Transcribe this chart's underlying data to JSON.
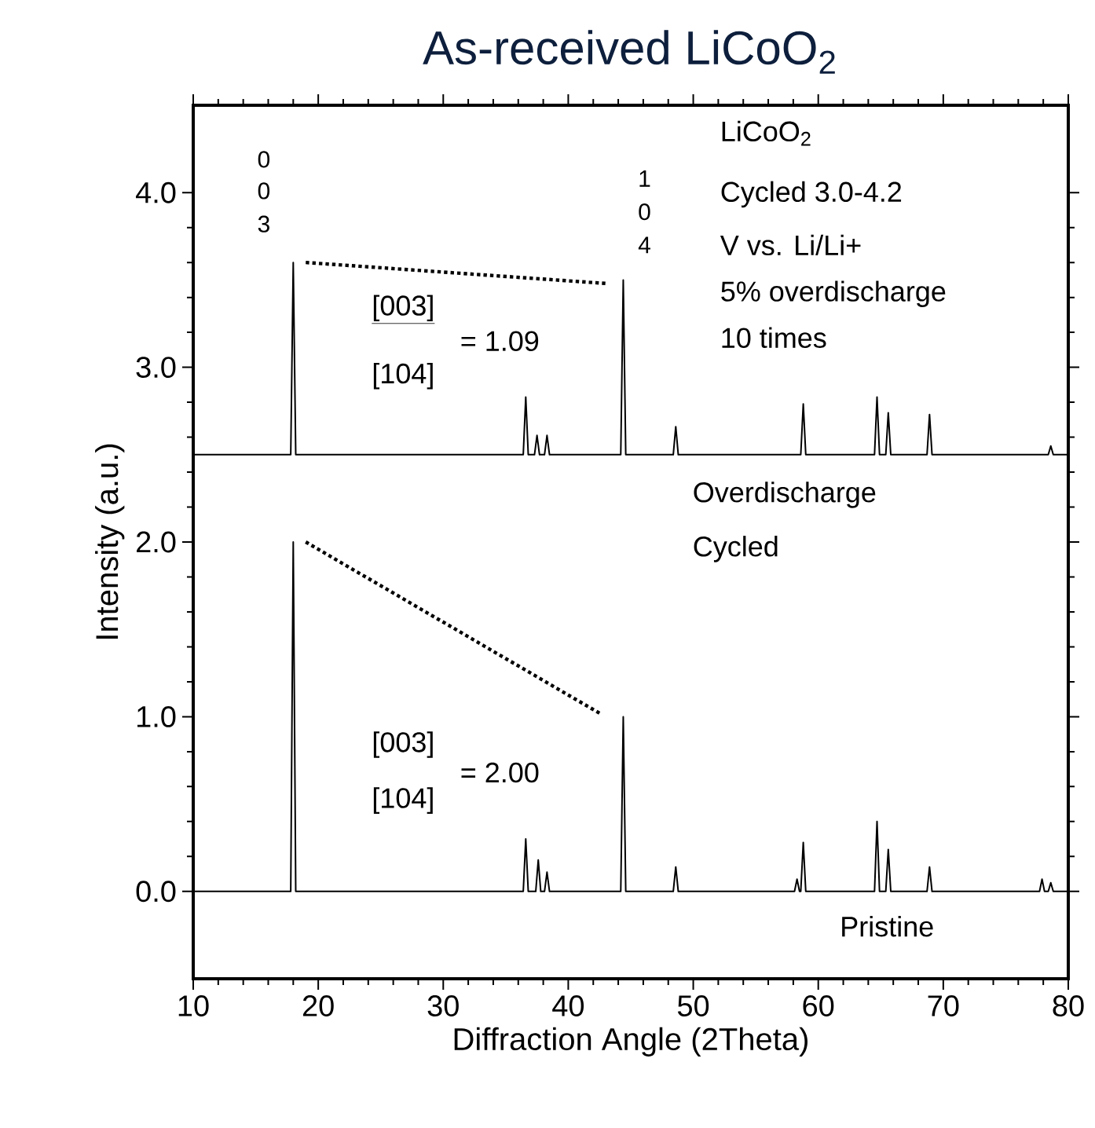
{
  "chart_data": {
    "type": "line",
    "title": "As-received LiCoO$_{2}$",
    "xlabel": "Diffraction Angle (2Theta)",
    "ylabel": "Intensity (a.u.)",
    "xlim": [
      10,
      80
    ],
    "ylim": [
      -0.5,
      4.5
    ],
    "xticks": [
      10,
      20,
      30,
      40,
      50,
      60,
      70,
      80
    ],
    "yticks": [
      {
        "value": 0,
        "label": "0.0"
      },
      {
        "value": 1,
        "label": "1.0"
      },
      {
        "value": 2,
        "label": "2.0"
      },
      {
        "value": 3,
        "label": "3.0"
      },
      {
        "value": 4,
        "label": "4.0"
      }
    ],
    "marker": "none",
    "series": [
      {
        "color": "#000000",
        "line_style": "solid",
        "x": [
          10,
          17.8,
          18.0,
          18.2,
          36.4,
          36.6,
          36.8,
          37.4,
          37.6,
          37.8,
          38.1,
          38.3,
          38.5,
          44.2,
          44.4,
          44.6,
          48.4,
          48.6,
          48.8,
          58.1,
          58.3,
          58.5,
          58.6,
          58.8,
          59.0,
          64.5,
          64.7,
          64.9,
          65.4,
          65.6,
          65.8,
          68.7,
          68.9,
          69.1,
          77.7,
          77.9,
          78.1,
          78.4,
          78.6,
          78.8,
          80
        ],
        "values": [
          0,
          0,
          2.0,
          0,
          0,
          0.3,
          0,
          0,
          0.18,
          0,
          0,
          0.11,
          0,
          0,
          1.0,
          0,
          0,
          0.14,
          0,
          0,
          0.07,
          0,
          0,
          0.28,
          0,
          0,
          0.4,
          0,
          0,
          0.24,
          0,
          0,
          0.14,
          0,
          0,
          0.07,
          0,
          0,
          0.05,
          0,
          0
        ]
      },
      {
        "color": "#000000",
        "line_style": "solid",
        "x": [
          10,
          17.8,
          18.0,
          18.2,
          36.4,
          36.6,
          36.8,
          37.3,
          37.5,
          37.7,
          38.1,
          38.3,
          38.5,
          44.2,
          44.4,
          44.6,
          48.4,
          48.6,
          48.8,
          58.6,
          58.8,
          59.0,
          64.5,
          64.7,
          64.9,
          65.4,
          65.6,
          65.8,
          68.7,
          68.9,
          69.1,
          78.4,
          78.6,
          78.8,
          80
        ],
        "values": [
          2.5,
          2.5,
          3.6,
          2.5,
          2.5,
          2.83,
          2.5,
          2.5,
          2.61,
          2.5,
          2.5,
          2.61,
          2.5,
          2.5,
          3.5,
          2.5,
          2.5,
          2.66,
          2.5,
          2.5,
          2.79,
          2.5,
          2.5,
          2.83,
          2.5,
          2.5,
          2.74,
          2.5,
          2.5,
          2.73,
          2.5,
          2.5,
          2.55,
          2.5,
          2.5
        ]
      },
      {
        "color": "#000000",
        "line_style": "dotted",
        "x": [
          19.0,
          43.0
        ],
        "values": [
          3.6,
          3.48
        ]
      },
      {
        "color": "#000000",
        "line_style": "dotted",
        "x": [
          19.0,
          42.5
        ],
        "values": [
          2.0,
          1.02
        ]
      }
    ],
    "annotations": [
      "0",
      "0",
      "3",
      "1",
      "0",
      "4",
      "[003]",
      "[104]",
      "= 1.09",
      "LiCoO$_{2}$",
      "Cycled 3.0-4.2",
      "V vs. Li/Li+",
      "5% overdischarge",
      "10 times",
      "Overdischarge",
      "Cycled",
      "[003]",
      "[104]",
      "= 2.00",
      "Pristine"
    ]
  }
}
